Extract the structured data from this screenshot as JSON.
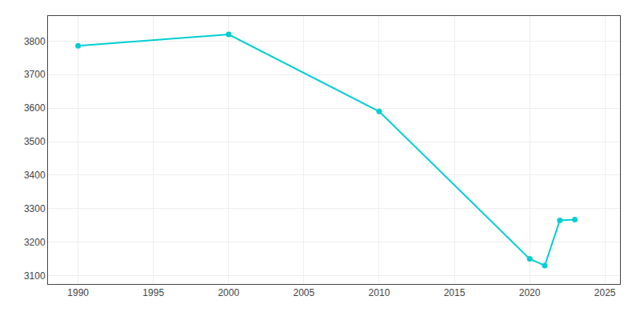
{
  "chart_data": {
    "type": "line",
    "x": [
      1990,
      2000,
      2010,
      2020,
      2021,
      2022,
      2023
    ],
    "values": [
      3786,
      3820,
      3590,
      3150,
      3130,
      3265,
      3267
    ],
    "color": "#00CED1",
    "marker": "circle",
    "xlim": [
      1988,
      2026
    ],
    "ylim": [
      3075,
      3875
    ],
    "xticks": [
      1990,
      1995,
      2000,
      2005,
      2010,
      2015,
      2020,
      2025
    ],
    "yticks": [
      3100,
      3200,
      3300,
      3400,
      3500,
      3600,
      3700,
      3800
    ],
    "grid": true
  }
}
